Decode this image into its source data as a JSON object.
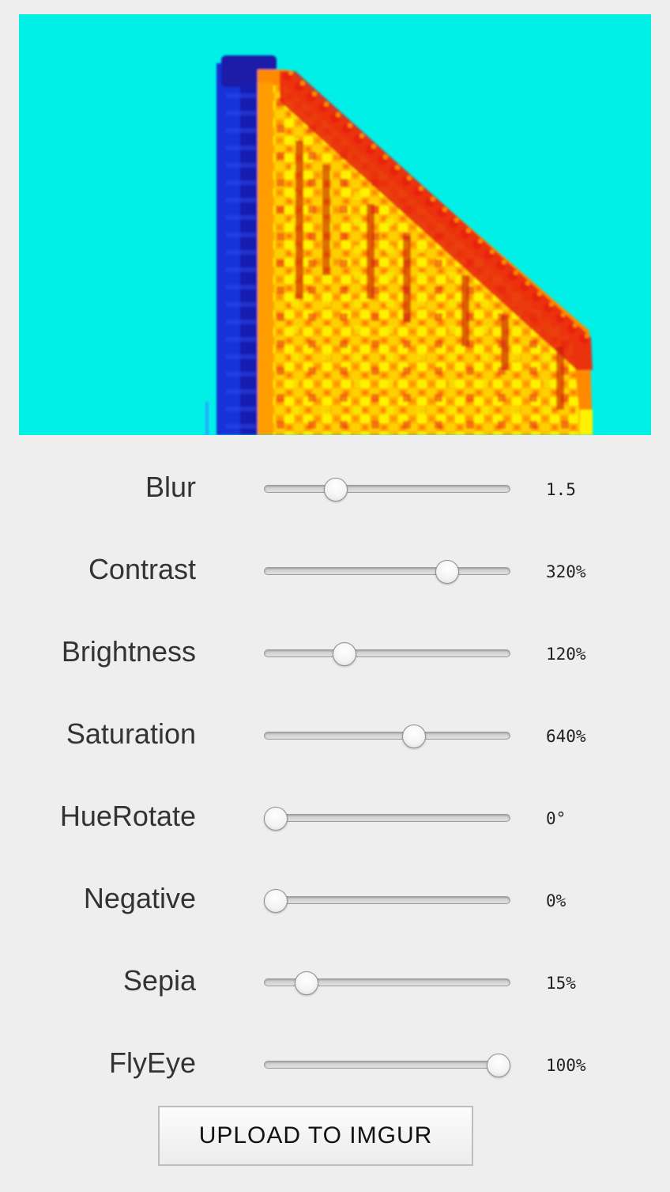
{
  "preview": {
    "background_color": "#00f0e8",
    "colors": {
      "cyan": "#00f0e8",
      "blue": "#1430d8",
      "dark_blue": "#1a1ca8",
      "orange": "#ff8a00",
      "red": "#e8200c",
      "yellow": "#fff200"
    }
  },
  "sliders": [
    {
      "id": "blur",
      "label": "Blur",
      "value_text": "1.5",
      "level": 0.27
    },
    {
      "id": "contrast",
      "label": "Contrast",
      "value_text": "320%",
      "level": 0.77
    },
    {
      "id": "brightness",
      "label": "Brightness",
      "value_text": "120%",
      "level": 0.31
    },
    {
      "id": "saturation",
      "label": "Saturation",
      "value_text": "640%",
      "level": 0.62
    },
    {
      "id": "huerotate",
      "label": "HueRotate",
      "value_text": "0°",
      "level": 0.0
    },
    {
      "id": "negative",
      "label": "Negative",
      "value_text": "0%",
      "level": 0.0
    },
    {
      "id": "sepia",
      "label": "Sepia",
      "value_text": "15%",
      "level": 0.14
    },
    {
      "id": "flyeye",
      "label": "FlyEye",
      "value_text": "100%",
      "level": 1.0
    }
  ],
  "upload_button": {
    "label": "UPLOAD TO IMGUR"
  }
}
